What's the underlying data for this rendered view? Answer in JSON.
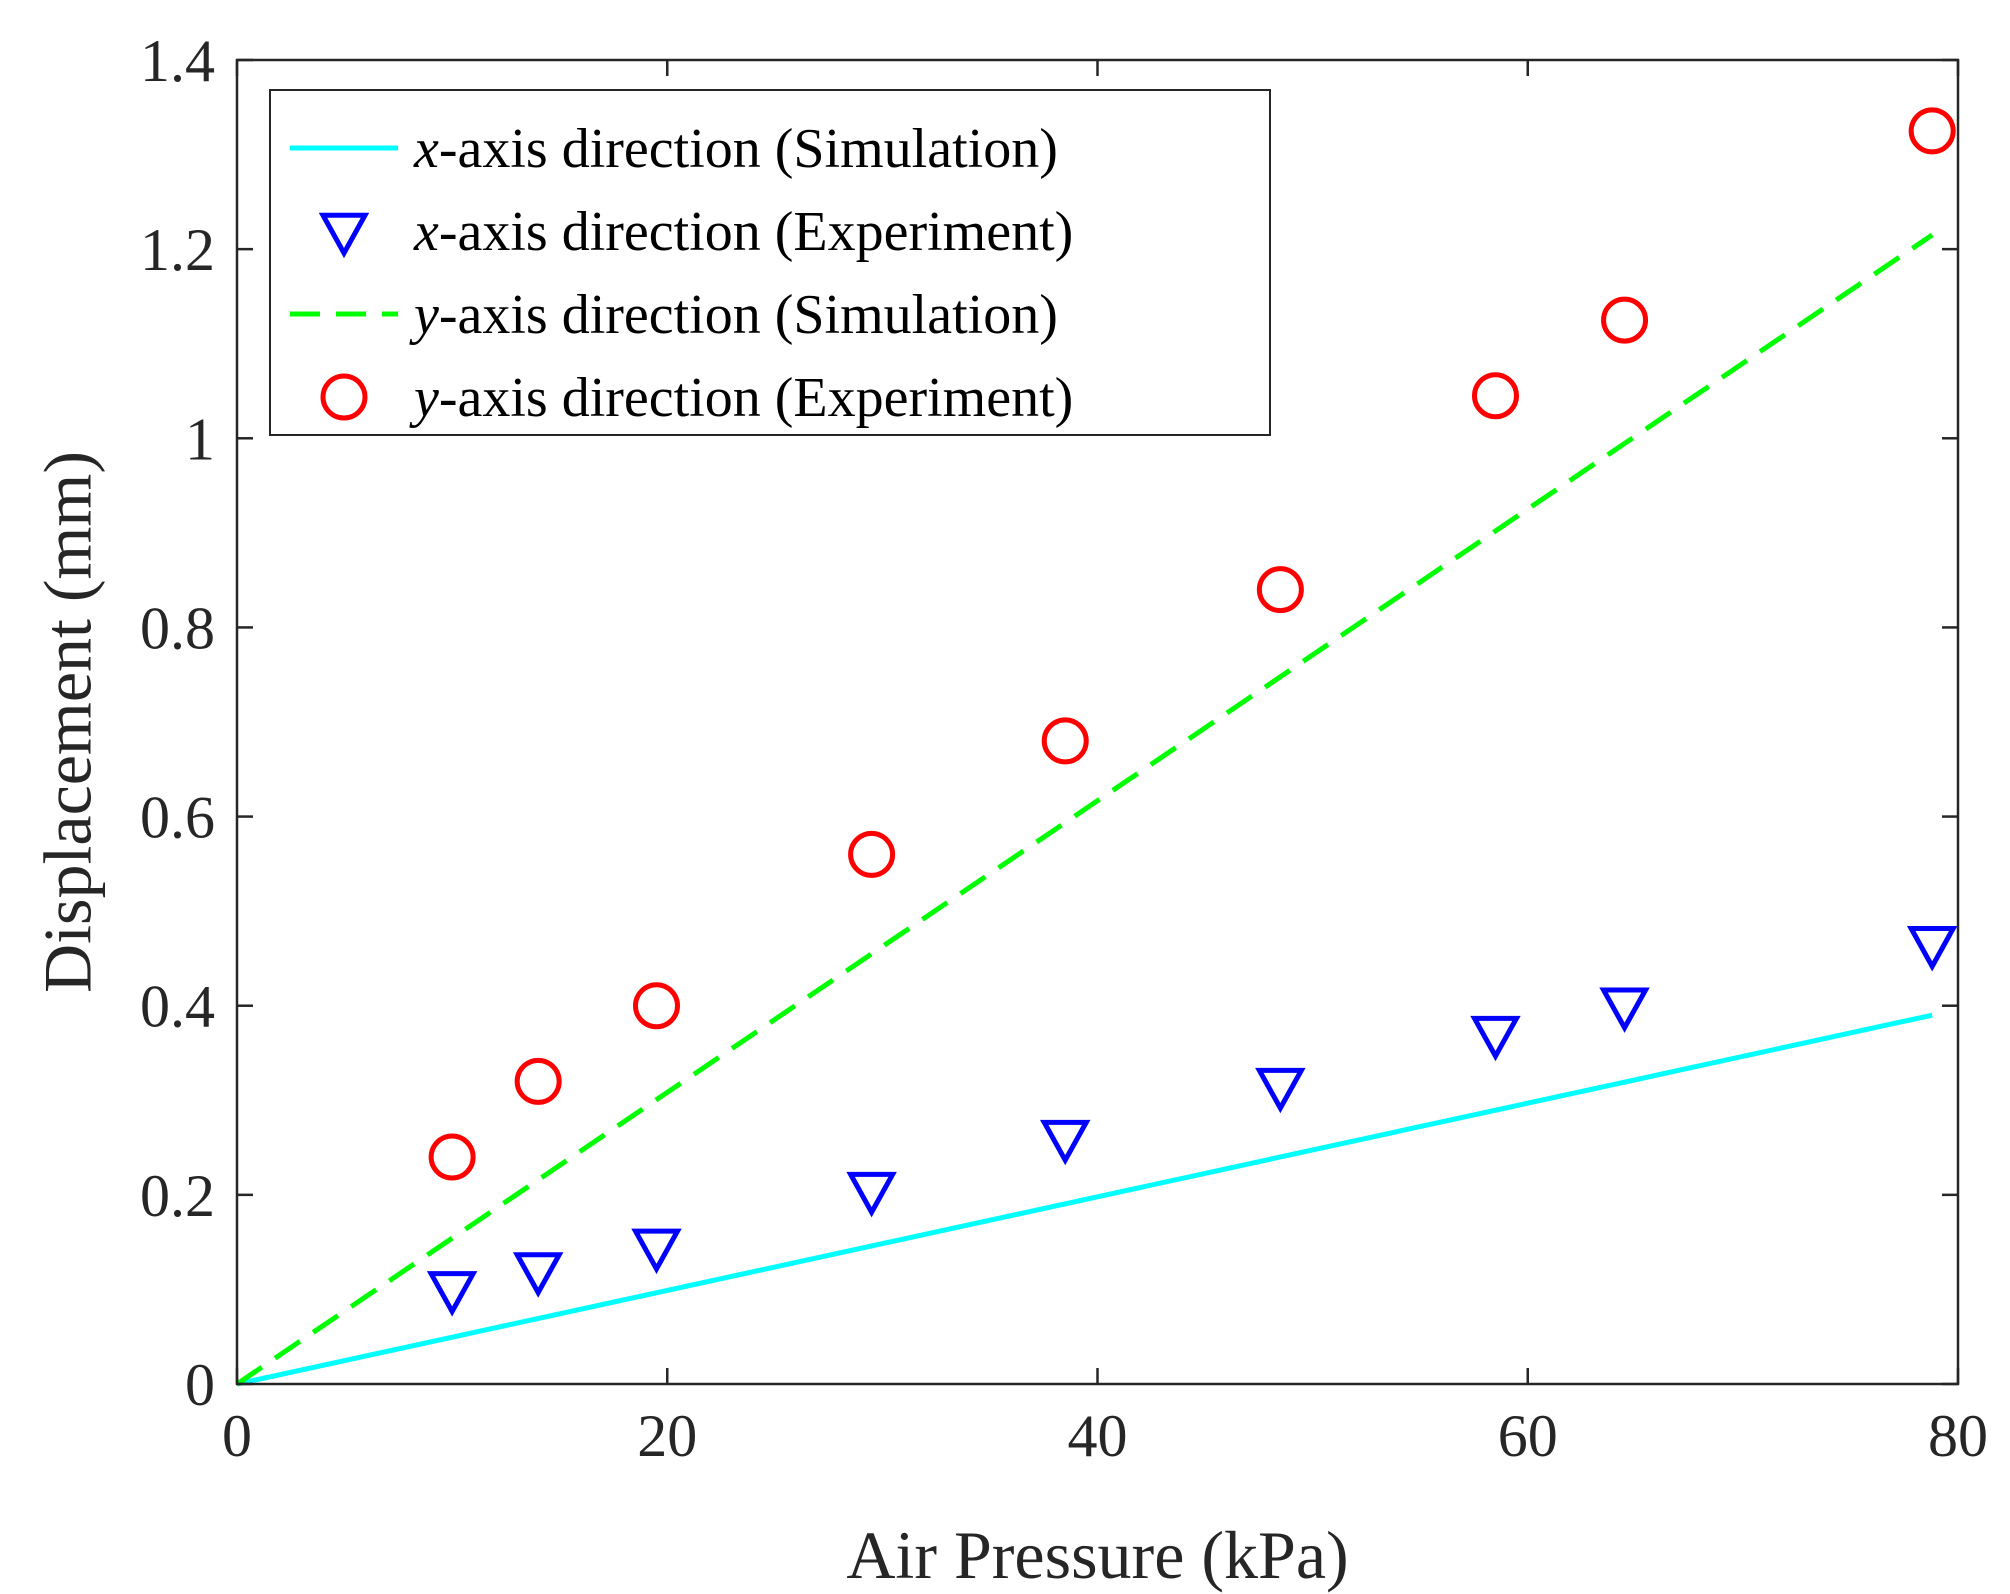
{
  "chart_data": {
    "type": "line",
    "title": "",
    "xlabel": "Air Pressure (kPa)",
    "ylabel": "Displacement (mm)",
    "xlim": [
      0,
      80
    ],
    "ylim": [
      0,
      1.4
    ],
    "grid": false,
    "legend_position": "top-left",
    "x_ticks": [
      0,
      20,
      40,
      60,
      80
    ],
    "x_tick_labels": [
      "0",
      "20",
      "40",
      "60",
      "80"
    ],
    "y_ticks": [
      0,
      0.2,
      0.4,
      0.6,
      0.8,
      1.0,
      1.2,
      1.4
    ],
    "y_tick_labels": [
      "0",
      "0.2",
      "0.4",
      "0.6",
      "0.8",
      "1",
      "1.2",
      "1.4"
    ],
    "series": [
      {
        "name": "x-axis direction (Simulation)",
        "legend_var": "x",
        "legend_rest": "-axis direction (Simulation)",
        "kind": "line",
        "style": "solid",
        "color": "#00FFFF",
        "x": [
          0,
          78.8
        ],
        "y": [
          0,
          0.39
        ]
      },
      {
        "name": "x-axis direction (Experiment)",
        "legend_var": "x",
        "legend_rest": "-axis direction (Experiment)",
        "kind": "marker",
        "marker": "triangle-down",
        "color": "#0000FF",
        "x": [
          10,
          14,
          19.5,
          29.5,
          38.5,
          48.5,
          58.5,
          64.5,
          78.8
        ],
        "y": [
          0.1,
          0.12,
          0.145,
          0.205,
          0.26,
          0.315,
          0.37,
          0.4,
          0.465
        ]
      },
      {
        "name": "y-axis direction (Simulation)",
        "legend_var": "y",
        "legend_rest": "-axis direction (Simulation)",
        "kind": "line",
        "style": "dashed",
        "color": "#00FF00",
        "x": [
          0,
          78.8
        ],
        "y": [
          0,
          1.215
        ]
      },
      {
        "name": "y-axis direction (Experiment)",
        "legend_var": "y",
        "legend_rest": "-axis direction (Experiment)",
        "kind": "marker",
        "marker": "circle",
        "color": "#FF0000",
        "x": [
          10,
          14,
          19.5,
          29.5,
          38.5,
          48.5,
          58.5,
          64.5,
          78.8
        ],
        "y": [
          0.24,
          0.32,
          0.4,
          0.56,
          0.68,
          0.84,
          1.045,
          1.125,
          1.325
        ]
      }
    ]
  }
}
